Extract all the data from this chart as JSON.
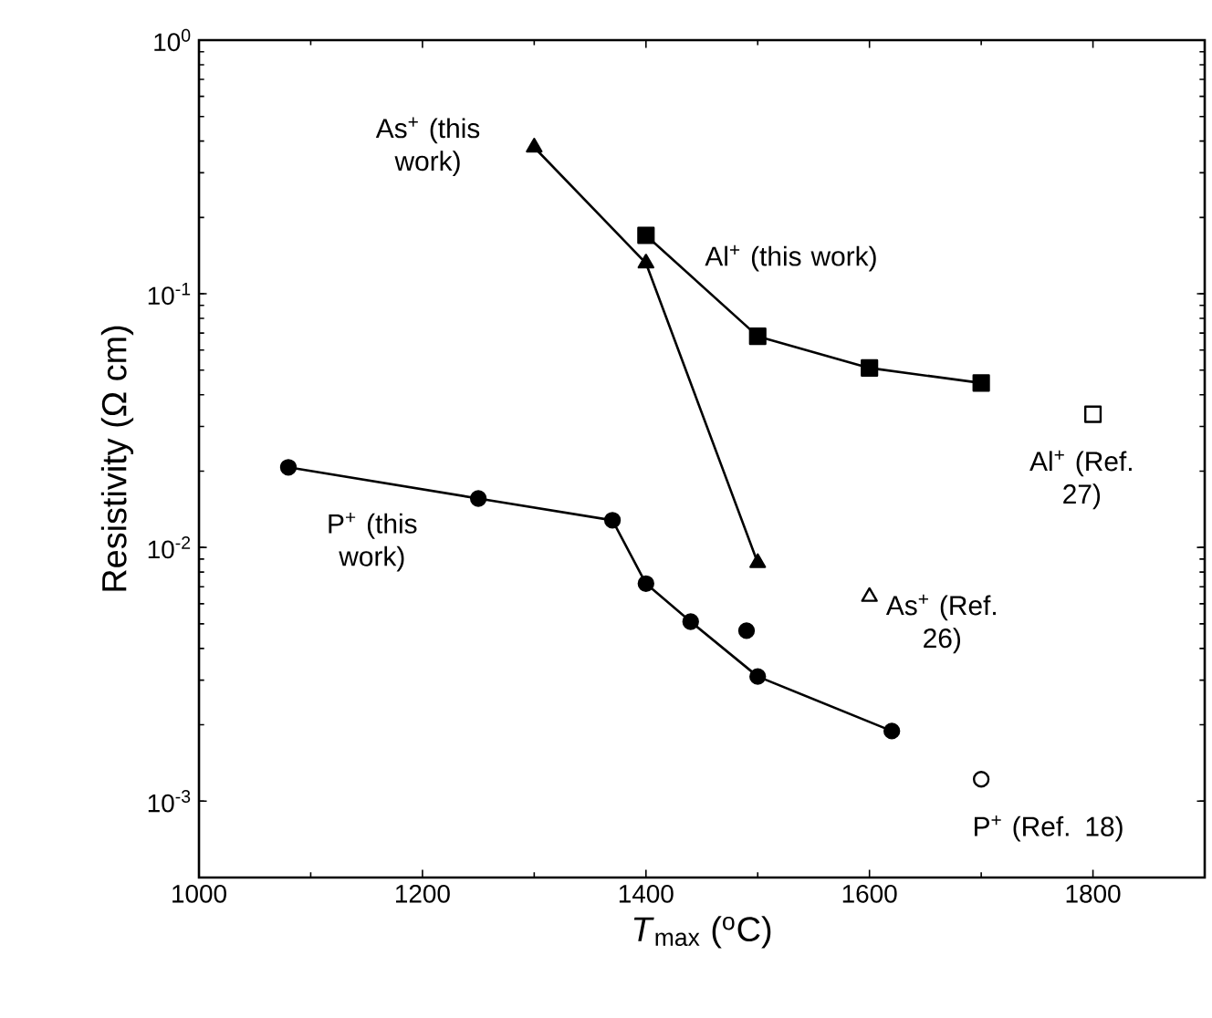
{
  "chart_data": {
    "type": "line",
    "xlabel": "*T*$_{max}$ ($^{o}$C)",
    "ylabel": "Resistivity (Ω cm)",
    "log": "y",
    "xlim": [
      1000,
      1900
    ],
    "xticks": [
      1000,
      1200,
      1400,
      1600,
      1800
    ],
    "ylim": [
      0.0005,
      1
    ],
    "yticks": [
      {
        "value": 0.001,
        "label": "10$^{-3}$"
      },
      {
        "value": 0.01,
        "label": "10$^{-2}$"
      },
      {
        "value": 0.1,
        "label": "10$^{-1}$"
      },
      {
        "value": 1,
        "label": "10$^{0}$"
      }
    ],
    "grid": false,
    "legend": false,
    "line_style": "solid",
    "series": [
      {
        "name": "As$^{+}$ (this work)",
        "marker": "triangle",
        "color": "#000000",
        "x": [
          1300,
          1400,
          1500
        ],
        "values": [
          0.378,
          0.132,
          0.0087
        ]
      },
      {
        "name": "Al$^{+}$ (this work)",
        "marker": "square",
        "color": "#000000",
        "x": [
          1400,
          1500,
          1600,
          1700
        ],
        "values": [
          0.17,
          0.068,
          0.051,
          0.0445
        ]
      },
      {
        "name": "P$^{+}$ (this work)",
        "marker": "circle",
        "color": "#000000",
        "x": [
          1080,
          1250,
          1370,
          1400,
          1440,
          1500,
          1620
        ],
        "values": [
          0.0207,
          0.0156,
          0.0128,
          0.0072,
          0.0051,
          0.0031,
          0.00189
        ]
      },
      {
        "marker": "circle",
        "color": "#000000",
        "x": [
          1490
        ],
        "values": [
          0.0047
        ]
      },
      {
        "name": "Al$^{+}$ (Ref. 27)",
        "marker": "square",
        "color": "#ffffff",
        "x": [
          1800
        ],
        "values": [
          0.0335
        ]
      },
      {
        "name": "As$^{+}$ (Ref. 26)",
        "marker": "triangle",
        "color": "#ffffff",
        "x": [
          1600
        ],
        "values": [
          0.0064
        ]
      },
      {
        "name": "P$^{+}$ (Ref. 18)",
        "marker": "circle",
        "color": "#ffffff",
        "x": [
          1700
        ],
        "values": [
          0.00122
        ]
      }
    ]
  }
}
